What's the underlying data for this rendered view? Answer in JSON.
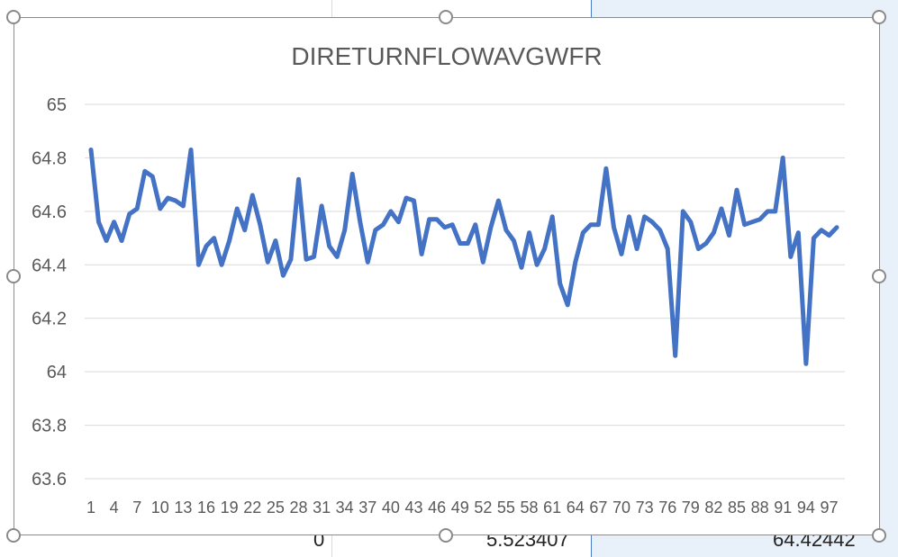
{
  "cells": {
    "bottom_values": [
      "0",
      "5.523407",
      "64.42442"
    ]
  },
  "chart_data": {
    "type": "line",
    "title": "DIRETURNFLOWAVGWFR",
    "xlabel": "",
    "ylabel": "",
    "ylim": [
      63.6,
      65
    ],
    "yticks": [
      "63.6",
      "63.8",
      "64",
      "64.2",
      "64.4",
      "64.6",
      "64.8",
      "65"
    ],
    "xtick_labels": [
      "1",
      "4",
      "7",
      "10",
      "13",
      "16",
      "19",
      "22",
      "25",
      "28",
      "31",
      "34",
      "37",
      "40",
      "43",
      "46",
      "49",
      "52",
      "55",
      "58",
      "61",
      "64",
      "67",
      "70",
      "73",
      "76",
      "79",
      "82",
      "85",
      "88",
      "91",
      "94",
      "97"
    ],
    "grid": true,
    "line_color": "#4472c4",
    "series": [
      {
        "x": [
          1,
          2,
          3,
          4,
          5,
          6,
          7,
          8,
          9,
          10,
          11,
          12,
          13,
          14,
          15,
          16,
          17,
          18,
          19,
          20,
          21,
          22,
          23,
          24,
          25,
          26,
          27,
          28,
          29,
          30,
          31,
          32,
          33,
          34,
          35,
          36,
          37,
          38,
          39,
          40,
          41,
          42,
          43,
          44,
          45,
          46,
          47,
          48,
          49,
          50,
          51,
          52,
          53,
          54,
          55,
          56,
          57,
          58,
          59,
          60,
          61,
          62,
          63,
          64,
          65,
          66,
          67,
          68,
          69,
          70,
          71,
          72,
          73,
          74,
          75,
          76,
          77,
          78,
          79,
          80,
          81,
          82,
          83,
          84,
          85,
          86,
          87,
          88,
          89,
          90,
          91,
          92,
          93,
          94,
          95,
          96,
          97,
          98
        ],
        "values": [
          64.83,
          64.56,
          64.49,
          64.56,
          64.49,
          64.59,
          64.61,
          64.75,
          64.73,
          64.61,
          64.65,
          64.64,
          64.62,
          64.83,
          64.4,
          64.47,
          64.5,
          64.4,
          64.49,
          64.61,
          64.53,
          64.66,
          64.55,
          64.41,
          64.49,
          64.36,
          64.42,
          64.72,
          64.42,
          64.43,
          64.62,
          64.47,
          64.43,
          64.53,
          64.74,
          64.56,
          64.41,
          64.53,
          64.55,
          64.6,
          64.56,
          64.65,
          64.64,
          64.44,
          64.57,
          64.57,
          64.54,
          64.55,
          64.48,
          64.48,
          64.55,
          64.41,
          64.54,
          64.64,
          64.53,
          64.49,
          64.39,
          64.52,
          64.4,
          64.46,
          64.58,
          64.33,
          64.25,
          64.41,
          64.52,
          64.55,
          64.55,
          64.76,
          64.54,
          64.44,
          64.58,
          64.46,
          64.58,
          64.56,
          64.53,
          64.46,
          64.06,
          64.6,
          64.56,
          64.46,
          64.48,
          64.52,
          64.61,
          64.51,
          64.68,
          64.55,
          64.56,
          64.57,
          64.6,
          64.6,
          64.8,
          64.43,
          64.52,
          64.03,
          64.5,
          64.53,
          64.51,
          64.54
        ]
      }
    ]
  }
}
